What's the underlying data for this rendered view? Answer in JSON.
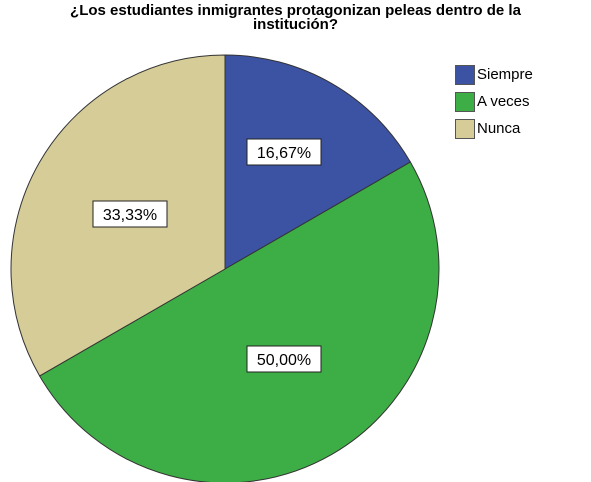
{
  "chart_data": {
    "type": "pie",
    "title_line1": "¿Los estudiantes inmigrantes protagonizan peleas dentro de la",
    "title_line2": "institución?",
    "categories": [
      "Siempre",
      "A veces",
      "Nunca"
    ],
    "values": [
      16.67,
      50.0,
      33.33
    ],
    "data_labels": [
      "16,67%",
      "50,00%",
      "33,33%"
    ],
    "colors": [
      "#3c52a3",
      "#3dae45",
      "#d5cc98"
    ],
    "start_angle": "12 o'clock",
    "direction": "clockwise",
    "legend_position": "top-right"
  }
}
